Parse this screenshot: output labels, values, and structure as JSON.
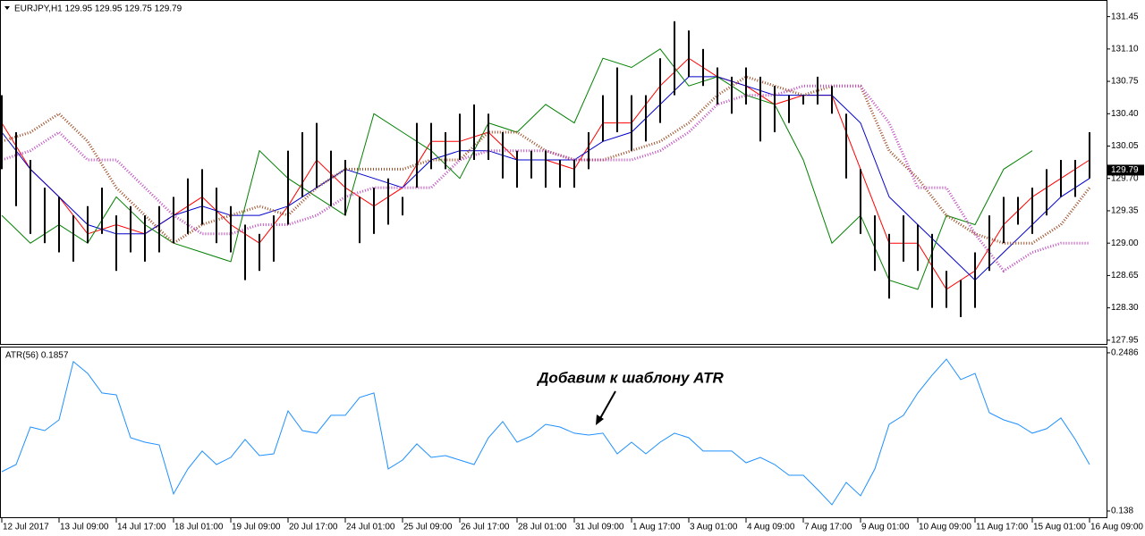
{
  "chart_data": [
    {
      "type": "ohlc",
      "title": "EURJPY,H1 129.95 129.95 129.75 129.79",
      "x": [
        0,
        8,
        16,
        24,
        32,
        40,
        48,
        56,
        64,
        72,
        80,
        88,
        96,
        104,
        112,
        120,
        128,
        136,
        144,
        152,
        160,
        168,
        176,
        184,
        192,
        200,
        208,
        216,
        224,
        232,
        240,
        248,
        256,
        264,
        272,
        280,
        288,
        296,
        304,
        312,
        320,
        328,
        336,
        344,
        352,
        360,
        368,
        376,
        384,
        392,
        400,
        408,
        416,
        424,
        432,
        440,
        448,
        456,
        464,
        472,
        480,
        488,
        496,
        504,
        512,
        520,
        528,
        536,
        544,
        552,
        560,
        568,
        576,
        584,
        592,
        600,
        608
      ],
      "high": [
        130.6,
        130.2,
        129.9,
        129.6,
        129.5,
        129.3,
        129.4,
        129.6,
        129.3,
        129.4,
        129.3,
        129.4,
        129.5,
        129.7,
        129.8,
        129.6,
        129.4,
        129.2,
        129.1,
        129.3,
        130.0,
        130.2,
        130.3,
        130.0,
        129.9,
        129.5,
        129.6,
        129.7,
        129.5,
        130.3,
        130.3,
        130.2,
        130.4,
        130.5,
        130.4,
        130.2,
        130.0,
        130.0,
        130.0,
        129.9,
        129.9,
        130.2,
        130.6,
        130.9,
        130.6,
        130.6,
        131.0,
        131.4,
        131.3,
        131.1,
        130.9,
        130.8,
        130.9,
        130.8,
        130.7,
        130.6,
        130.6,
        130.8,
        130.7,
        130.4,
        129.8,
        129.3,
        129.1,
        129.3,
        129.2,
        129.1,
        128.7,
        128.6,
        128.9,
        129.3,
        129.5,
        129.5,
        129.6,
        129.8,
        129.9,
        129.9,
        130.2
      ],
      "low": [
        129.8,
        129.4,
        129.1,
        129.0,
        128.9,
        128.8,
        129.0,
        129.1,
        128.7,
        128.9,
        128.8,
        128.9,
        129.0,
        129.1,
        129.2,
        129.0,
        128.9,
        128.6,
        128.7,
        128.8,
        129.2,
        129.5,
        129.6,
        129.4,
        129.3,
        129.0,
        129.1,
        129.2,
        129.3,
        129.6,
        129.8,
        129.8,
        129.9,
        129.9,
        129.9,
        129.7,
        129.6,
        129.7,
        129.6,
        129.6,
        129.6,
        129.8,
        130.1,
        130.2,
        130.0,
        130.1,
        130.3,
        130.6,
        130.8,
        130.7,
        130.5,
        130.4,
        130.5,
        130.1,
        130.2,
        130.3,
        130.5,
        130.5,
        130.4,
        129.7,
        129.1,
        128.7,
        128.4,
        128.8,
        128.7,
        128.3,
        128.3,
        128.2,
        128.3,
        128.7,
        129.0,
        129.2,
        129.1,
        129.3,
        129.5,
        129.5,
        129.7
      ],
      "bar_color": "#000000",
      "series": [
        {
          "color": "#ff0000",
          "style": "solid",
          "x": [
            0,
            16,
            32,
            48,
            64,
            80,
            96,
            112,
            128,
            144,
            160,
            176,
            192,
            208,
            224,
            240,
            256,
            272,
            288,
            304,
            320,
            336,
            352,
            368,
            384,
            400,
            416,
            432,
            448,
            464,
            480,
            496,
            512,
            528,
            544,
            560,
            576,
            592,
            608
          ],
          "values": [
            130.3,
            129.8,
            129.5,
            129.1,
            129.2,
            129.1,
            129.3,
            129.5,
            129.2,
            129.0,
            129.4,
            129.9,
            129.6,
            129.4,
            129.6,
            130.1,
            130.1,
            130.2,
            129.9,
            129.9,
            129.8,
            130.3,
            130.3,
            130.7,
            131.0,
            130.8,
            130.7,
            130.5,
            130.6,
            130.6,
            129.8,
            129.0,
            129.0,
            128.5,
            128.7,
            129.2,
            129.5,
            129.7,
            129.9
          ]
        },
        {
          "color": "#0000cc",
          "style": "solid",
          "x": [
            0,
            16,
            32,
            48,
            64,
            80,
            96,
            112,
            128,
            144,
            160,
            176,
            192,
            208,
            224,
            240,
            256,
            272,
            288,
            304,
            320,
            336,
            352,
            368,
            384,
            400,
            416,
            432,
            448,
            464,
            480,
            496,
            512,
            528,
            544,
            560,
            576,
            592,
            608
          ],
          "values": [
            130.2,
            129.8,
            129.5,
            129.2,
            129.1,
            129.1,
            129.3,
            129.4,
            129.3,
            129.3,
            129.4,
            129.6,
            129.8,
            129.7,
            129.6,
            129.9,
            130.0,
            130.0,
            129.9,
            129.9,
            129.9,
            130.1,
            130.2,
            130.5,
            130.8,
            130.8,
            130.7,
            130.6,
            130.6,
            130.6,
            130.3,
            129.5,
            129.2,
            128.9,
            128.6,
            128.9,
            129.2,
            129.5,
            129.7
          ]
        },
        {
          "color": "#008000",
          "style": "solid",
          "x": [
            0,
            16,
            32,
            48,
            64,
            80,
            96,
            112,
            128,
            144,
            160,
            176,
            192,
            208,
            224,
            240,
            256,
            272,
            288,
            304,
            320,
            336,
            352,
            368,
            384,
            400,
            416,
            432,
            448,
            464,
            480,
            496,
            512,
            528,
            544,
            560,
            576,
            592,
            608
          ],
          "values": [
            129.3,
            129.0,
            129.2,
            129.0,
            129.5,
            129.2,
            129.0,
            128.9,
            128.8,
            130.0,
            129.7,
            129.5,
            129.3,
            130.4,
            130.2,
            130.0,
            129.7,
            130.3,
            130.2,
            130.5,
            130.3,
            131.0,
            130.9,
            131.1,
            130.7,
            130.8,
            130.6,
            130.5,
            129.9,
            129.0,
            129.3,
            128.6,
            128.5,
            129.3,
            129.2,
            129.8,
            130.0,
            null,
            null
          ]
        },
        {
          "color": "#a0522d",
          "style": "dotted",
          "x": [
            0,
            16,
            32,
            48,
            64,
            80,
            96,
            112,
            128,
            144,
            160,
            176,
            192,
            208,
            224,
            240,
            256,
            272,
            288,
            304,
            320,
            336,
            352,
            368,
            384,
            400,
            416,
            432,
            448,
            464,
            480,
            496,
            512,
            528,
            544,
            560,
            576,
            592,
            608
          ],
          "values": [
            130.1,
            130.2,
            130.4,
            130.1,
            129.6,
            129.3,
            129.0,
            129.2,
            129.3,
            129.4,
            129.3,
            129.6,
            129.8,
            129.8,
            129.8,
            129.9,
            129.9,
            130.2,
            130.2,
            130.0,
            129.9,
            129.9,
            130.0,
            130.1,
            130.3,
            130.6,
            130.8,
            130.7,
            130.6,
            130.7,
            130.7,
            130.0,
            129.7,
            129.3,
            129.1,
            129.0,
            129.0,
            129.2,
            129.6
          ]
        },
        {
          "color": "#c050c0",
          "style": "dotted",
          "x": [
            0,
            16,
            32,
            48,
            64,
            80,
            96,
            112,
            128,
            144,
            160,
            176,
            192,
            208,
            224,
            240,
            256,
            272,
            288,
            304,
            320,
            336,
            352,
            368,
            384,
            400,
            416,
            432,
            448,
            464,
            480,
            496,
            512,
            528,
            544,
            560,
            576,
            592,
            608
          ],
          "values": [
            129.9,
            130.0,
            130.2,
            129.9,
            129.9,
            129.6,
            129.3,
            129.1,
            129.1,
            129.2,
            129.2,
            129.3,
            129.5,
            129.6,
            129.6,
            129.6,
            129.9,
            130.0,
            130.0,
            130.0,
            129.9,
            129.9,
            129.9,
            130.0,
            130.2,
            130.5,
            130.6,
            130.6,
            130.7,
            130.7,
            130.7,
            130.3,
            129.6,
            129.6,
            129.1,
            128.7,
            128.9,
            129.0,
            129.0
          ]
        }
      ],
      "last_price": 129.79,
      "xlim": [
        -1,
        617.5
      ],
      "xticks": [
        {
          "value": 0,
          "label": "12 Jul 2017"
        },
        {
          "value": 32,
          "label": "13 Jul 09:00"
        },
        {
          "value": 64,
          "label": "14 Jul 17:00"
        },
        {
          "value": 96,
          "label": "18 Jul 01:00"
        },
        {
          "value": 128,
          "label": "19 Jul 09:00"
        },
        {
          "value": 160,
          "label": "20 Jul 17:00"
        },
        {
          "value": 192,
          "label": "24 Jul 01:00"
        },
        {
          "value": 224,
          "label": "25 Jul 09:00"
        },
        {
          "value": 256,
          "label": "26 Jul 17:00"
        },
        {
          "value": 288,
          "label": "28 Jul 01:00"
        },
        {
          "value": 320,
          "label": "31 Jul 09:00"
        },
        {
          "value": 352,
          "label": "1 Aug 17:00"
        },
        {
          "value": 384,
          "label": "3 Aug 01:00"
        },
        {
          "value": 416,
          "label": "4 Aug 09:00"
        },
        {
          "value": 448,
          "label": "7 Aug 17:00"
        },
        {
          "value": 480,
          "label": "9 Aug 01:00"
        },
        {
          "value": 512,
          "label": "10 Aug 09:00"
        },
        {
          "value": 544,
          "label": "11 Aug 17:00"
        },
        {
          "value": 576,
          "label": "15 Aug 01:00"
        },
        {
          "value": 608,
          "label": "16 Aug 09:00"
        }
      ],
      "ylim": [
        127.9,
        131.63
      ],
      "yticks": [
        131.45,
        {
          "value": 131.1,
          "label": "131.10"
        },
        130.75,
        {
          "value": 130.4,
          "label": "130.40"
        },
        130.05,
        {
          "value": 129.7,
          "label": "129.70"
        },
        129.35,
        {
          "value": 129.0,
          "label": "129.00"
        },
        128.65,
        {
          "value": 128.3,
          "label": "128.30"
        },
        127.95
      ]
    },
    {
      "type": "line",
      "title": "ATR(56) 0.1857",
      "annotation": "Добавим к шаблону ATR",
      "color": "#1e90ff",
      "x": [
        0,
        8,
        16,
        24,
        32,
        40,
        48,
        56,
        64,
        72,
        80,
        88,
        96,
        104,
        112,
        120,
        128,
        136,
        144,
        152,
        160,
        168,
        176,
        184,
        192,
        200,
        208,
        216,
        224,
        232,
        240,
        248,
        256,
        264,
        272,
        280,
        288,
        296,
        304,
        312,
        320,
        328,
        336,
        344,
        352,
        360,
        368,
        376,
        384,
        392,
        400,
        408,
        416,
        424,
        432,
        440,
        448,
        456,
        464,
        472,
        480,
        488,
        496,
        504,
        512,
        520,
        528,
        536,
        544,
        552,
        560,
        568,
        576,
        584,
        592,
        600,
        608
      ],
      "values": [
        0.1655,
        0.1705,
        0.1967,
        0.1942,
        0.2017,
        0.2424,
        0.2342,
        0.2205,
        0.2192,
        0.1892,
        0.1861,
        0.1842,
        0.1499,
        0.1674,
        0.1799,
        0.1705,
        0.1755,
        0.188,
        0.1767,
        0.178,
        0.208,
        0.1942,
        0.1924,
        0.2049,
        0.2049,
        0.2174,
        0.2205,
        0.1674,
        0.1736,
        0.1849,
        0.1755,
        0.1767,
        0.1736,
        0.1705,
        0.1892,
        0.2005,
        0.1861,
        0.1905,
        0.1986,
        0.1967,
        0.1924,
        0.1911,
        0.1924,
        0.178,
        0.1861,
        0.178,
        0.1861,
        0.1924,
        0.1892,
        0.1799,
        0.1799,
        0.1799,
        0.1717,
        0.1755,
        0.1705,
        0.163,
        0.163,
        0.153,
        0.1424,
        0.158,
        0.1486,
        0.1674,
        0.1986,
        0.2049,
        0.2205,
        0.233,
        0.2442,
        0.2299,
        0.2342,
        0.2067,
        0.2017,
        0.1986,
        0.1924,
        0.1955,
        0.203,
        0.188,
        0.1705
      ],
      "ylim": [
        0.133,
        0.2523
      ],
      "yticks": [
        0.2486,
        0.138
      ]
    }
  ]
}
